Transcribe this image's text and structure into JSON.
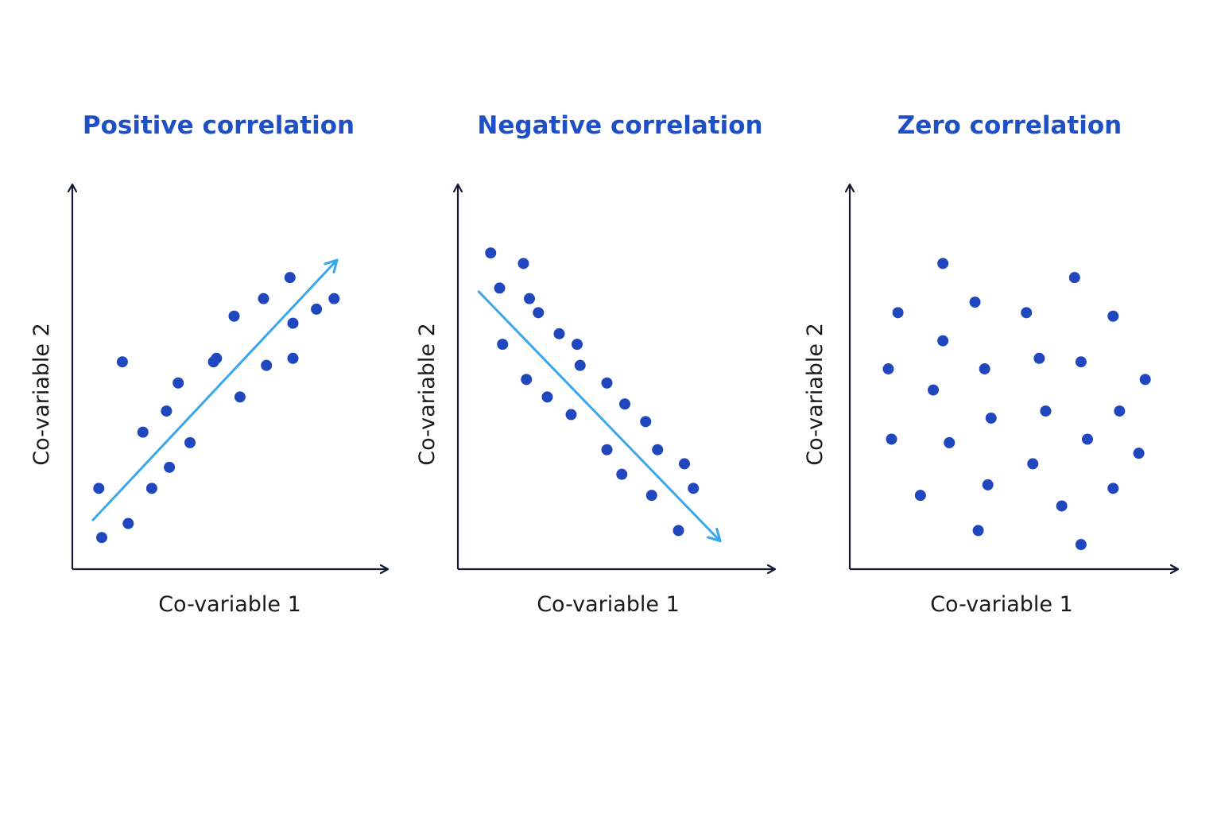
{
  "colors": {
    "title": "#1f4fc4",
    "point": "#2147bf",
    "trend": "#3aa7ea",
    "axis": "#141a33",
    "label": "#1a1a1a",
    "background": "#ffffff"
  },
  "chart_data": [
    {
      "type": "scatter",
      "title": "Positive correlation",
      "xlabel": "Co-variable 1",
      "ylabel": "Co-variable 2",
      "xlim": [
        0,
        10
      ],
      "ylim": [
        0,
        10
      ],
      "ticks": "none",
      "grid": false,
      "trend": {
        "x": [
          0.7,
          9.0
        ],
        "y": [
          1.4,
          8.8
        ],
        "arrow": "end"
      },
      "x": [
        0.9,
        1.0,
        1.7,
        1.9,
        2.4,
        2.7,
        3.2,
        3.3,
        3.6,
        4.0,
        4.8,
        4.9,
        5.5,
        5.7,
        6.5,
        6.6,
        7.4,
        7.5,
        7.5,
        8.3,
        8.9
      ],
      "y": [
        2.3,
        0.9,
        5.9,
        1.3,
        3.9,
        2.3,
        4.5,
        2.9,
        5.3,
        3.6,
        5.9,
        6.0,
        7.2,
        4.9,
        7.7,
        5.8,
        8.3,
        7.0,
        6.0,
        7.4,
        7.7
      ]
    },
    {
      "type": "scatter",
      "title": "Negative correlation",
      "xlabel": "Co-variable 1",
      "ylabel": "Co-variable 2",
      "xlim": [
        0,
        10
      ],
      "ylim": [
        0,
        10
      ],
      "ticks": "none",
      "grid": false,
      "trend": {
        "x": [
          0.7,
          8.8
        ],
        "y": [
          7.9,
          0.8
        ],
        "arrow": "end"
      },
      "x": [
        1.1,
        1.4,
        1.5,
        2.2,
        2.3,
        2.4,
        2.7,
        3.0,
        3.4,
        3.8,
        4.0,
        4.1,
        5.0,
        5.0,
        5.5,
        5.6,
        6.3,
        6.5,
        6.7,
        7.4,
        7.6,
        7.9
      ],
      "y": [
        9.0,
        8.0,
        6.4,
        8.7,
        5.4,
        7.7,
        7.3,
        4.9,
        6.7,
        4.4,
        6.4,
        5.8,
        3.4,
        5.3,
        2.7,
        4.7,
        4.2,
        2.1,
        3.4,
        1.1,
        3.0,
        2.3
      ]
    },
    {
      "type": "scatter",
      "title": "Zero correlation",
      "xlabel": "Co-variable 1",
      "ylabel": "Co-variable 2",
      "xlim": [
        0,
        10
      ],
      "ylim": [
        0,
        10
      ],
      "ticks": "none",
      "grid": false,
      "x": [
        1.2,
        1.3,
        1.5,
        2.2,
        2.6,
        2.9,
        2.9,
        3.1,
        3.9,
        4.0,
        4.2,
        4.3,
        4.4,
        5.5,
        5.7,
        5.9,
        6.1,
        6.6,
        7.0,
        7.2,
        7.2,
        7.4,
        8.2,
        8.2,
        8.4,
        9.0,
        9.2
      ],
      "y": [
        5.7,
        3.7,
        7.3,
        2.1,
        5.1,
        8.7,
        6.5,
        3.6,
        7.6,
        1.1,
        5.7,
        2.4,
        4.3,
        7.3,
        3.0,
        6.0,
        4.5,
        1.8,
        8.3,
        0.7,
        5.9,
        3.7,
        7.2,
        2.3,
        4.5,
        3.3,
        5.4
      ]
    }
  ]
}
